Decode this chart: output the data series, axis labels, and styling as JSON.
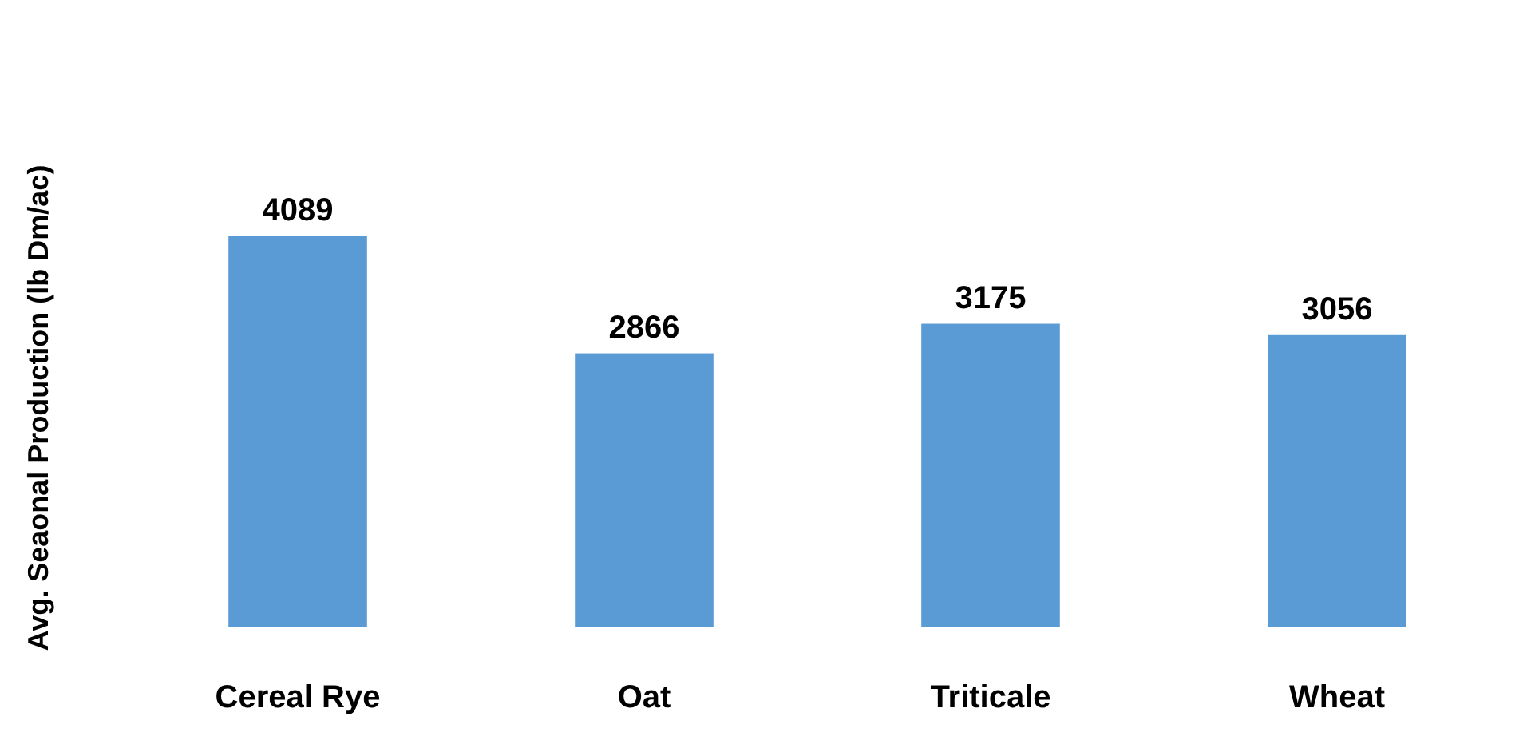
{
  "chart_data": {
    "type": "bar",
    "ylabel": "Avg. Seaonal Production (lb Dm/ac)",
    "categories": [
      "Cereal Rye",
      "Oat",
      "Triticale",
      "Wheat"
    ],
    "values": [
      4089,
      2866,
      3175,
      3056
    ],
    "color": "#5b9bd5",
    "data_labels": true
  }
}
